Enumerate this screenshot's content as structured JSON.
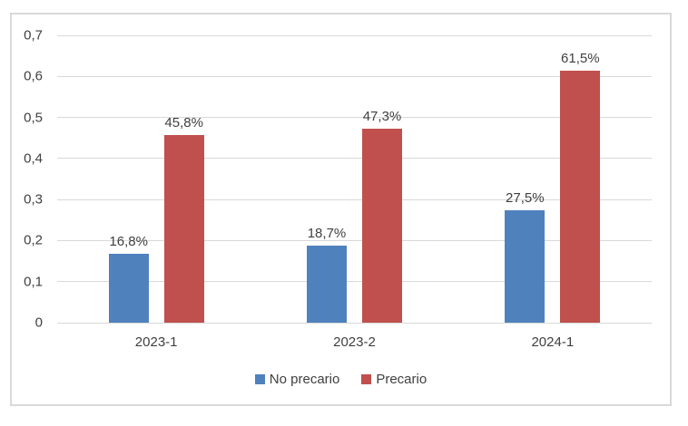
{
  "chart_data": {
    "type": "bar",
    "categories": [
      "2023-1",
      "2023-2",
      "2024-1"
    ],
    "series": [
      {
        "name": "No precario",
        "color": "#4F81BD",
        "values": [
          0.168,
          0.187,
          0.275
        ],
        "labels": [
          "16,8%",
          "18,7%",
          "27,5%"
        ]
      },
      {
        "name": "Precario",
        "color": "#C0504D",
        "values": [
          0.458,
          0.473,
          0.615
        ],
        "labels": [
          "45,8%",
          "47,3%",
          "61,5%"
        ]
      }
    ],
    "ylim": [
      0,
      0.7
    ],
    "ytick_step": 0.1,
    "yticklabels": [
      "0",
      "0,1",
      "0,2",
      "0,3",
      "0,4",
      "0,5",
      "0,6",
      "0,7"
    ],
    "grid": true,
    "legend_position": "bottom",
    "decimal_separator": ",",
    "colors": {
      "gridline": "#D9D9D9",
      "frame_border": "#D9D9D9",
      "tick_text": "#404040",
      "data_label_text": "#404040",
      "background": "#FFFFFF"
    }
  }
}
